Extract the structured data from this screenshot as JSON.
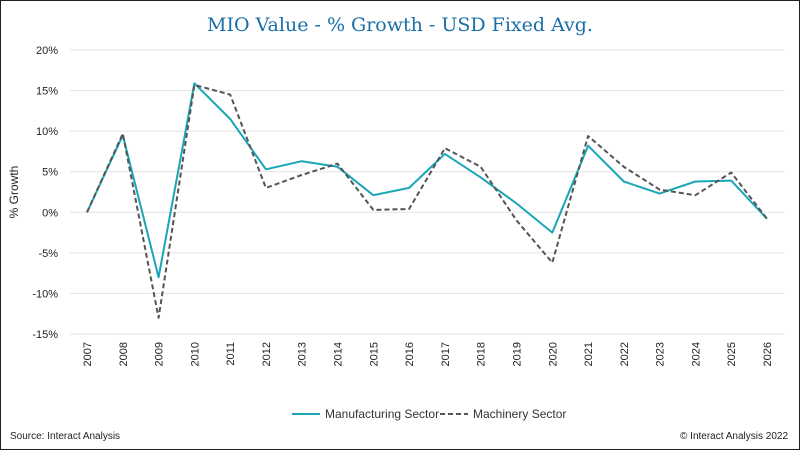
{
  "chart_data": {
    "type": "line",
    "title": "MIO Value - % Growth - USD Fixed Avg.",
    "ylabel": "% Growth",
    "xlabel": "",
    "ylim": [
      -15,
      20
    ],
    "yticks": [
      20,
      15,
      10,
      5,
      0,
      -5,
      -10,
      -15
    ],
    "ytick_labels": [
      "20%",
      "15%",
      "10%",
      "5%",
      "0%",
      "-5%",
      "-10%",
      "-15%"
    ],
    "grid": true,
    "legend_position": "bottom",
    "categories": [
      "2007",
      "2008",
      "2009",
      "2010",
      "2011",
      "2012",
      "2013",
      "2014",
      "2015",
      "2016",
      "2017",
      "2018",
      "2019",
      "2020",
      "2021",
      "2022",
      "2023",
      "2024",
      "2025",
      "2026"
    ],
    "series": [
      {
        "name": "Manufacturing Sector",
        "color": "#1aa6b7",
        "style": "solid",
        "values": [
          0,
          9.5,
          -8.0,
          15.9,
          11.5,
          5.3,
          6.3,
          5.6,
          2.1,
          3.0,
          7.2,
          4.3,
          1.1,
          -2.5,
          8.2,
          3.8,
          2.3,
          3.8,
          3.9,
          -0.8
        ]
      },
      {
        "name": "Machinery Sector",
        "color": "#555555",
        "style": "dashed",
        "values": [
          0,
          9.7,
          -13.0,
          15.7,
          14.5,
          3.0,
          4.6,
          6.0,
          0.3,
          0.4,
          7.9,
          5.6,
          -1.0,
          -6.2,
          9.4,
          5.6,
          2.8,
          2.1,
          4.9,
          -0.8
        ]
      }
    ]
  },
  "footer": {
    "source": "Source: Interact Analysis",
    "copyright": "© Interact Analysis 2022"
  }
}
